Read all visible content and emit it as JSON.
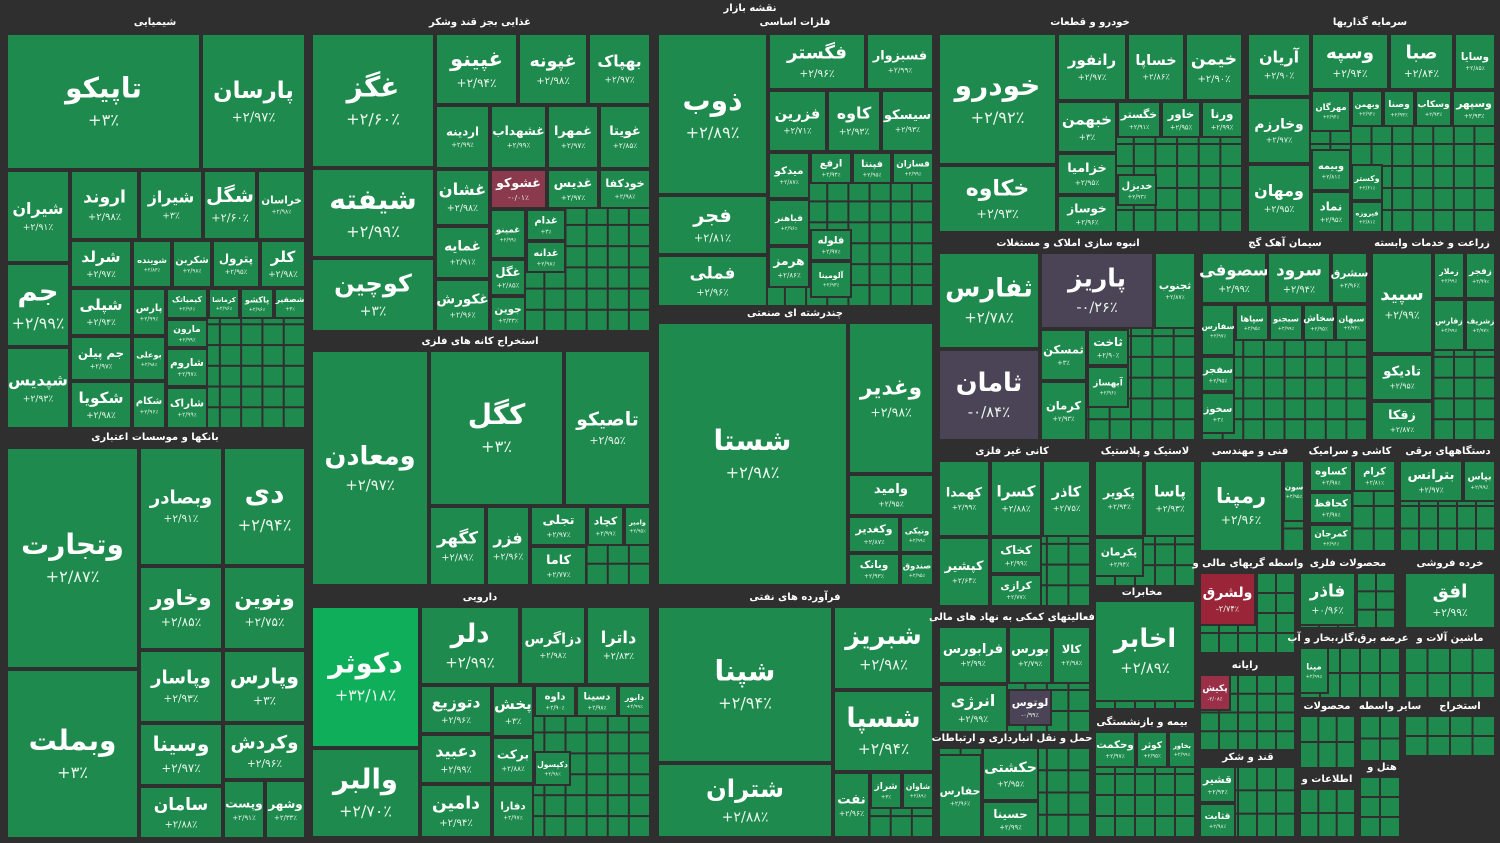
{
  "title": "نقشه بازار",
  "tile_color": "#1f8a4d",
  "sectors": [
    {
      "title": "شیمیایی",
      "tiles": [
        {
          "name": "تاپیکو",
          "change": "+۳٪"
        },
        {
          "name": "پارسان",
          "change": "+۲/۹۷٪"
        },
        {
          "name": "شیران",
          "change": "+۲/۹۱٪"
        },
        {
          "name": "اروند",
          "change": "+۲/۹۸٪"
        },
        {
          "name": "شیراز",
          "change": "+۳٪"
        },
        {
          "name": "شگل",
          "change": "+۲/۶۰٪"
        },
        {
          "name": "خراسان",
          "change": "+۲/۹۸٪"
        },
        {
          "name": "جم",
          "change": "+۲/۹۹٪"
        },
        {
          "name": "شپدیس",
          "change": "+۲/۹۳٪"
        },
        {
          "name": "شرلد",
          "change": "+۲/۹۷٪"
        },
        {
          "name": "شوینده",
          "change": "+۲/۸۳٪"
        },
        {
          "name": "شکربن",
          "change": "+۲/۹۸٪"
        },
        {
          "name": "پترول",
          "change": "+۲/۹۵٪"
        },
        {
          "name": "کلر",
          "change": "+۲/۹۸٪"
        },
        {
          "name": "شپلی",
          "change": "+۲/۹۴٪"
        },
        {
          "name": "پارس",
          "change": "+۲/۹۹٪"
        },
        {
          "name": "کیمیاتک",
          "change": "+۲/۹۶٪"
        },
        {
          "name": "کرماشا",
          "change": "+۲/۹۶٪"
        },
        {
          "name": "پاکشو",
          "change": "+۲/۹۶٪"
        },
        {
          "name": "شصفیر",
          "change": "+۳٪"
        },
        {
          "name": "جم پیلن",
          "change": "+۲/۹۷٪"
        },
        {
          "name": "بوعلی",
          "change": "+۲/۹۸٪"
        },
        {
          "name": "مارون",
          "change": "+۲/۹۹٪"
        },
        {
          "name": "شاروم",
          "change": "+۲/۹۷٪"
        },
        {
          "name": "شکویا",
          "change": "+۲/۹۸٪"
        },
        {
          "name": "شکام",
          "change": "+۲/۹۶٪"
        },
        {
          "name": "شاراک",
          "change": "+۲/۹۹٪"
        }
      ]
    },
    {
      "title": "بانکها و موسسات اعتباری",
      "tiles": [
        {
          "name": "وتجارت",
          "change": "+۲/۸۷٪"
        },
        {
          "name": "وبملت",
          "change": "+۳٪"
        },
        {
          "name": "وبصادر",
          "change": "+۲/۹۱٪"
        },
        {
          "name": "دی",
          "change": "+۲/۹۴٪"
        },
        {
          "name": "وخاور",
          "change": "+۲/۸۵٪"
        },
        {
          "name": "ونوین",
          "change": "+۲/۷۵٪"
        },
        {
          "name": "وپاسار",
          "change": "+۲/۹۳٪"
        },
        {
          "name": "وپارس",
          "change": "+۳٪"
        },
        {
          "name": "وسینا",
          "change": "+۲/۹۷٪"
        },
        {
          "name": "وکردش",
          "change": "+۲/۹۶٪"
        },
        {
          "name": "سامان",
          "change": "+۲/۸۸٪"
        },
        {
          "name": "وپست",
          "change": "+۲/۹۱٪"
        },
        {
          "name": "وشهر",
          "change": "+۲/۳۳٪"
        }
      ]
    },
    {
      "title": "غذایی بجز قند وشکر",
      "tiles": [
        {
          "name": "غگز",
          "change": "+۲/۶۰٪"
        },
        {
          "name": "غپینو",
          "change": "+۲/۹۴٪"
        },
        {
          "name": "غپونه",
          "change": "+۲/۹۸٪"
        },
        {
          "name": "بهپاک",
          "change": "+۲/۹۷٪"
        },
        {
          "name": "شیفته",
          "change": "+۲/۹۹٪"
        },
        {
          "name": "کوچین",
          "change": "+۳٪"
        },
        {
          "name": "اردینه",
          "change": "+۲/۹۹٪"
        },
        {
          "name": "غشهداب",
          "change": "+۲/۹۹٪"
        },
        {
          "name": "غمهرا",
          "change": "+۲/۹۷٪"
        },
        {
          "name": "غویتا",
          "change": "+۲/۸۵٪"
        },
        {
          "name": "غشان",
          "change": "+۲/۹۸٪"
        },
        {
          "name": "غشوکو",
          "change": "-۰/۰۱٪",
          "color": "#8a3a4c"
        },
        {
          "name": "غدیس",
          "change": "+۲/۹۷٪"
        },
        {
          "name": "خودکفا",
          "change": "+۲/۹۸٪"
        },
        {
          "name": "غمایه",
          "change": "+۲/۹۱٪"
        },
        {
          "name": "غمینو",
          "change": "+۲/۹۹٪"
        },
        {
          "name": "غدام",
          "change": "+۳٪"
        },
        {
          "name": "غدانه",
          "change": "+۲/۹۸٪"
        },
        {
          "name": "غگل",
          "change": "+۲/۸۵٪"
        },
        {
          "name": "غکورش",
          "change": "+۲/۹۶٪"
        },
        {
          "name": "جوین",
          "change": "+۲/۳۳٪"
        }
      ]
    },
    {
      "title": "استخراج کانه های فلزی",
      "tiles": [
        {
          "name": "ومعادن",
          "change": "+۲/۹۷٪"
        },
        {
          "name": "کگل",
          "change": "+۳٪"
        },
        {
          "name": "تاصیکو",
          "change": "+۲/۹۵٪"
        },
        {
          "name": "کگهر",
          "change": "+۲/۸۹٪"
        },
        {
          "name": "فزر",
          "change": "+۲/۹۶٪"
        },
        {
          "name": "تجلی",
          "change": "+۲/۹۷٪"
        },
        {
          "name": "کاما",
          "change": "+۲/۷۷٪"
        },
        {
          "name": "کچاد",
          "change": "+۲/۹۹٪"
        },
        {
          "name": "وامیر",
          "change": "+۲/۹۵٪"
        }
      ]
    },
    {
      "title": "دارویی",
      "tiles": [
        {
          "name": "دکوثر",
          "change": "+۳۲/۱۸٪",
          "color": "#0fae5a"
        },
        {
          "name": "والبر",
          "change": "+۲/۷۰٪"
        },
        {
          "name": "دلر",
          "change": "+۲/۹۹٪"
        },
        {
          "name": "دزاگرس",
          "change": "+۲/۹۸٪"
        },
        {
          "name": "داترا",
          "change": "+۲/۸۳٪"
        },
        {
          "name": "دتوزیع",
          "change": "+۲/۹۶٪"
        },
        {
          "name": "پخش",
          "change": "+۳٪"
        },
        {
          "name": "داوه",
          "change": "+۲/۹۰٪"
        },
        {
          "name": "دسینا",
          "change": "+۲/۹۸٪"
        },
        {
          "name": "دابور",
          "change": "+۲/۹۹٪"
        },
        {
          "name": "دعبید",
          "change": "+۲/۹۹٪"
        },
        {
          "name": "برکت",
          "change": "+۲/۸۸٪"
        },
        {
          "name": "دکپسول",
          "change": "+۲/۹۸٪"
        },
        {
          "name": "دامین",
          "change": "+۲/۹۴٪"
        },
        {
          "name": "دفارا",
          "change": "+۲/۹۷٪"
        }
      ]
    },
    {
      "title": "فلزات اساسی",
      "tiles": [
        {
          "name": "ذوب",
          "change": "+۲/۸۹٪"
        },
        {
          "name": "فگستر",
          "change": "+۲/۹۶٪"
        },
        {
          "name": "فسبزوار",
          "change": "+۲/۹۹٪"
        },
        {
          "name": "فزرین",
          "change": "+۲/۷۱٪"
        },
        {
          "name": "کاوه",
          "change": "+۲/۹۳٪"
        },
        {
          "name": "سیسکو",
          "change": "+۲/۹۳٪"
        },
        {
          "name": "فجر",
          "change": "+۲/۸۱٪"
        },
        {
          "name": "فملی",
          "change": "+۲/۹۶٪"
        },
        {
          "name": "میدکو",
          "change": "+۲/۸۷٪"
        },
        {
          "name": "ارفع",
          "change": "+۲/۹۳٪"
        },
        {
          "name": "فپنتا",
          "change": "+۲/۹۵٪"
        },
        {
          "name": "فسازان",
          "change": "+۲/۹۹٪"
        },
        {
          "name": "فباهنر",
          "change": "+۲/۹۶٪"
        },
        {
          "name": "فلوله",
          "change": "+۲/۹۷٪"
        },
        {
          "name": "هرمز",
          "change": "+۲/۸۶٪"
        },
        {
          "name": "آلومینا",
          "change": "+۲/۹۳٪"
        }
      ]
    },
    {
      "title": "چندرشته ای صنعتی",
      "tiles": [
        {
          "name": "شستا",
          "change": "+۲/۹۸٪"
        },
        {
          "name": "وغدیر",
          "change": "+۲/۹۸٪"
        },
        {
          "name": "وامید",
          "change": "+۲/۹۵٪"
        },
        {
          "name": "وکغدیر",
          "change": "+۲/۸۷٪"
        },
        {
          "name": "ونیکی",
          "change": "+۲/۹۹٪"
        },
        {
          "name": "وبانک",
          "change": "+۲/۹۳٪"
        },
        {
          "name": "صندوق",
          "change": "+۲/۹۵٪"
        }
      ]
    },
    {
      "title": "فرآورده های نفتی",
      "tiles": [
        {
          "name": "شپنا",
          "change": "+۲/۹۴٪"
        },
        {
          "name": "شتران",
          "change": "+۲/۸۸٪"
        },
        {
          "name": "شبریز",
          "change": "+۲/۹۸٪"
        },
        {
          "name": "شسپا",
          "change": "+۲/۹۴٪"
        },
        {
          "name": "نفت",
          "change": "+۲/۹۶٪"
        },
        {
          "name": "شراز",
          "change": "+۳٪"
        },
        {
          "name": "شاوان",
          "change": "+۲/۸۹٪"
        }
      ]
    },
    {
      "title": "خودرو و قطعات",
      "tiles": [
        {
          "name": "خودرو",
          "change": "+۲/۹۲٪"
        },
        {
          "name": "خکاوه",
          "change": "+۲/۹۳٪"
        },
        {
          "name": "رانفور",
          "change": "+۲/۹۷٪"
        },
        {
          "name": "خساپا",
          "change": "+۲/۸۶٪"
        },
        {
          "name": "خیمن",
          "change": "+۲/۹۰٪"
        },
        {
          "name": "خبهمن",
          "change": "+۳٪"
        },
        {
          "name": "خگستر",
          "change": "+۲/۹۱٪"
        },
        {
          "name": "خاور",
          "change": "+۲/۹۵٪"
        },
        {
          "name": "ورنا",
          "change": "+۲/۹۹٪"
        },
        {
          "name": "خزامیا",
          "change": "+۲/۹۵٪"
        },
        {
          "name": "خدیزل",
          "change": "+۲/۹۳٪"
        },
        {
          "name": "خوساز",
          "change": "+۲/۹۶٪"
        }
      ]
    },
    {
      "title": "سرمایه گذاریها",
      "tiles": [
        {
          "name": "آریان",
          "change": "+۲/۹۰٪"
        },
        {
          "name": "وسپه",
          "change": "+۲/۹۴٪"
        },
        {
          "name": "صبا",
          "change": "+۲/۸۴٪"
        },
        {
          "name": "وسایا",
          "change": "+۲/۸۵٪"
        },
        {
          "name": "وخارزم",
          "change": "+۲/۹۷٪"
        },
        {
          "name": "ومهان",
          "change": "+۲/۹۵٪"
        },
        {
          "name": "مهرگان",
          "change": "+۲/۹۴٪"
        },
        {
          "name": "وبهمن",
          "change": "+۲/۹۴٪"
        },
        {
          "name": "وصنا",
          "change": "+۲/۹۳٪"
        },
        {
          "name": "وسکاب",
          "change": "+۲/۹۳٪"
        },
        {
          "name": "وسپهر",
          "change": "+۲/۹۳٪"
        },
        {
          "name": "وبیمه",
          "change": "+۲/۸۱٪"
        },
        {
          "name": "وکستر",
          "change": "+۲/۶۱٪"
        },
        {
          "name": "نماد",
          "change": "+۲/۹۵٪"
        },
        {
          "name": "فیروزه",
          "change": "+۲/۸۱٪"
        }
      ]
    },
    {
      "title": "انبوه سازی املاک و مستغلات",
      "tiles": [
        {
          "name": "ثفارس",
          "change": "+۲/۷۸٪"
        },
        {
          "name": "ثامان",
          "change": "-۰/۸۴٪",
          "color": "#4b4456"
        },
        {
          "name": "پاریز",
          "change": "-۰/۲۶٪",
          "color": "#4b4456"
        },
        {
          "name": "ثجنوب",
          "change": "+۲/۸۷٪"
        },
        {
          "name": "ثمسکن",
          "change": "+۳٪"
        },
        {
          "name": "ثاخت",
          "change": "+۲/۹۰٪"
        },
        {
          "name": "کرمان",
          "change": "+۲/۹۳٪"
        },
        {
          "name": "آبهساز",
          "change": "+۲/۹۶٪"
        }
      ]
    },
    {
      "title": "سیمان آهک گچ",
      "tiles": [
        {
          "name": "سصوفی",
          "change": "+۲/۹۹٪"
        },
        {
          "name": "سرود",
          "change": "+۲/۹۴٪"
        },
        {
          "name": "سشرق",
          "change": "+۲/۹۶٪"
        },
        {
          "name": "سفارس",
          "change": "+۲/۹۷٪"
        },
        {
          "name": "سپاها",
          "change": "+۲/۹۵٪"
        },
        {
          "name": "سبجنو",
          "change": "+۲/۹۹٪"
        },
        {
          "name": "سخاش",
          "change": "+۲/۹۵٪"
        },
        {
          "name": "سبهان",
          "change": "+۲/۹۳٪"
        },
        {
          "name": "سفجر",
          "change": "+۲/۹۵٪"
        },
        {
          "name": "سخوز",
          "change": "+۳٪"
        }
      ]
    },
    {
      "title": "زراعت و خدمات وابسته",
      "tiles": [
        {
          "name": "سپید",
          "change": "+۲/۹۹٪"
        },
        {
          "name": "زملار",
          "change": "+۲/۹۹٪"
        },
        {
          "name": "زفجر",
          "change": "+۲/۹۹٪"
        },
        {
          "name": "زفارس",
          "change": "+۲/۹۹٪"
        },
        {
          "name": "زشریف",
          "change": "+۲/۹۷٪"
        },
        {
          "name": "تادیکو",
          "change": "+۲/۹۵٪"
        },
        {
          "name": "زقکا",
          "change": "+۲/۸۷٪"
        }
      ]
    },
    {
      "title": "کانی غیر فلزی",
      "tiles": [
        {
          "name": "کهمدا",
          "change": "+۲/۹۹٪"
        },
        {
          "name": "کسرا",
          "change": "+۲/۸۸٪"
        },
        {
          "name": "کاذر",
          "change": "+۲/۷۵٪"
        },
        {
          "name": "کپشیر",
          "change": "+۲/۶۴٪"
        },
        {
          "name": "کخاک",
          "change": "+۲/۹۹٪"
        },
        {
          "name": "کرازی",
          "change": "+۲/۷۷٪"
        }
      ]
    },
    {
      "title": "لاستیک و پلاستیک",
      "tiles": [
        {
          "name": "پکویر",
          "change": "+۲/۹۴٪"
        },
        {
          "name": "پاسا",
          "change": "+۲/۹۳٪"
        },
        {
          "name": "پکرمان",
          "change": "+۲/۹۴٪"
        }
      ]
    },
    {
      "title": "فنی و مهندسی",
      "tiles": [
        {
          "name": "رمپنا",
          "change": "+۲/۹۶٪"
        },
        {
          "name": "سون",
          "change": "+۲/۹۵٪"
        }
      ]
    },
    {
      "title": "کاشی و سرامیک",
      "tiles": [
        {
          "name": "کساوه",
          "change": "+۲/۹۸٪"
        },
        {
          "name": "کرام",
          "change": "+۲/۸۱٪"
        },
        {
          "name": "کحافظ",
          "change": "+۲/۹۸٪"
        },
        {
          "name": "کمرجان",
          "change": "+۲/۹۶٪"
        }
      ]
    },
    {
      "title": "دستگاههای برقی",
      "tiles": [
        {
          "name": "بترانس",
          "change": "+۲/۹۷٪"
        },
        {
          "name": "بپاس",
          "change": "+۲/۹۹٪"
        }
      ]
    },
    {
      "title": "واسطه گریهای مالی و",
      "tiles": [
        {
          "name": "ولشرق",
          "change": "-۲/۷۴٪",
          "color": "#9a2438"
        }
      ]
    },
    {
      "title": "محصولات فلزی",
      "tiles": [
        {
          "name": "فاذر",
          "change": "+۰/۹۶٪"
        }
      ]
    },
    {
      "title": "خرده فروشی",
      "tiles": [
        {
          "name": "افق",
          "change": "+۲/۹۹٪"
        }
      ]
    },
    {
      "title": "فعالیتهای کمکی به نهاد های مالی",
      "tiles": [
        {
          "name": "فرابورس",
          "change": "+۲/۹۹٪"
        },
        {
          "name": "بورس",
          "change": "+۲/۷۹٪"
        },
        {
          "name": "کالا",
          "change": "+۲/۹۸٪"
        },
        {
          "name": "انرژی",
          "change": "+۲/۹۹٪"
        },
        {
          "name": "لوتوس",
          "change": "-۰/۹۹٪",
          "color": "#4b4456"
        }
      ]
    },
    {
      "title": "مخابرات",
      "tiles": [
        {
          "name": "اخابر",
          "change": "+۲/۸۹٪"
        }
      ]
    },
    {
      "title": "بیمه و بازنشستگی",
      "tiles": [
        {
          "name": "وحکمت",
          "change": "+۲/۹۷٪"
        },
        {
          "name": "کوثر",
          "change": "+۲/۹۵٪"
        },
        {
          "name": "بخاور",
          "change": "+۲/۹۹٪"
        }
      ]
    },
    {
      "title": "حمل و نقل انبارداری و ارتباطات",
      "tiles": [
        {
          "name": "حفارس",
          "change": "+۲/۹۶٪"
        },
        {
          "name": "حکشتی",
          "change": "+۲/۹۵٪"
        },
        {
          "name": "حسینا",
          "change": "+۲/۹۹٪"
        }
      ]
    },
    {
      "title": "رایانه",
      "tiles": [
        {
          "name": "پکیش",
          "change": "-۲/۰۸٪",
          "color": "#9a2f48"
        }
      ]
    },
    {
      "title": "قند و شکر",
      "tiles": [
        {
          "name": "قشیر",
          "change": "+۲/۹۴٪"
        },
        {
          "name": "قثابت",
          "change": "+۲/۹۸٪"
        }
      ]
    },
    {
      "title": "عرضه برق،گاز،بخار و آب",
      "tiles": [
        {
          "name": "مپنا",
          "change": "+۲/۹۹٪"
        }
      ]
    },
    {
      "title": "ماشین آلات و",
      "tiles": []
    },
    {
      "title": "محصولات",
      "tiles": []
    },
    {
      "title": "سایر واسطه",
      "tiles": []
    },
    {
      "title": "استخراج",
      "tiles": []
    },
    {
      "title": "اطلاعات و",
      "tiles": []
    },
    {
      "title": "هتل و",
      "tiles": []
    }
  ]
}
